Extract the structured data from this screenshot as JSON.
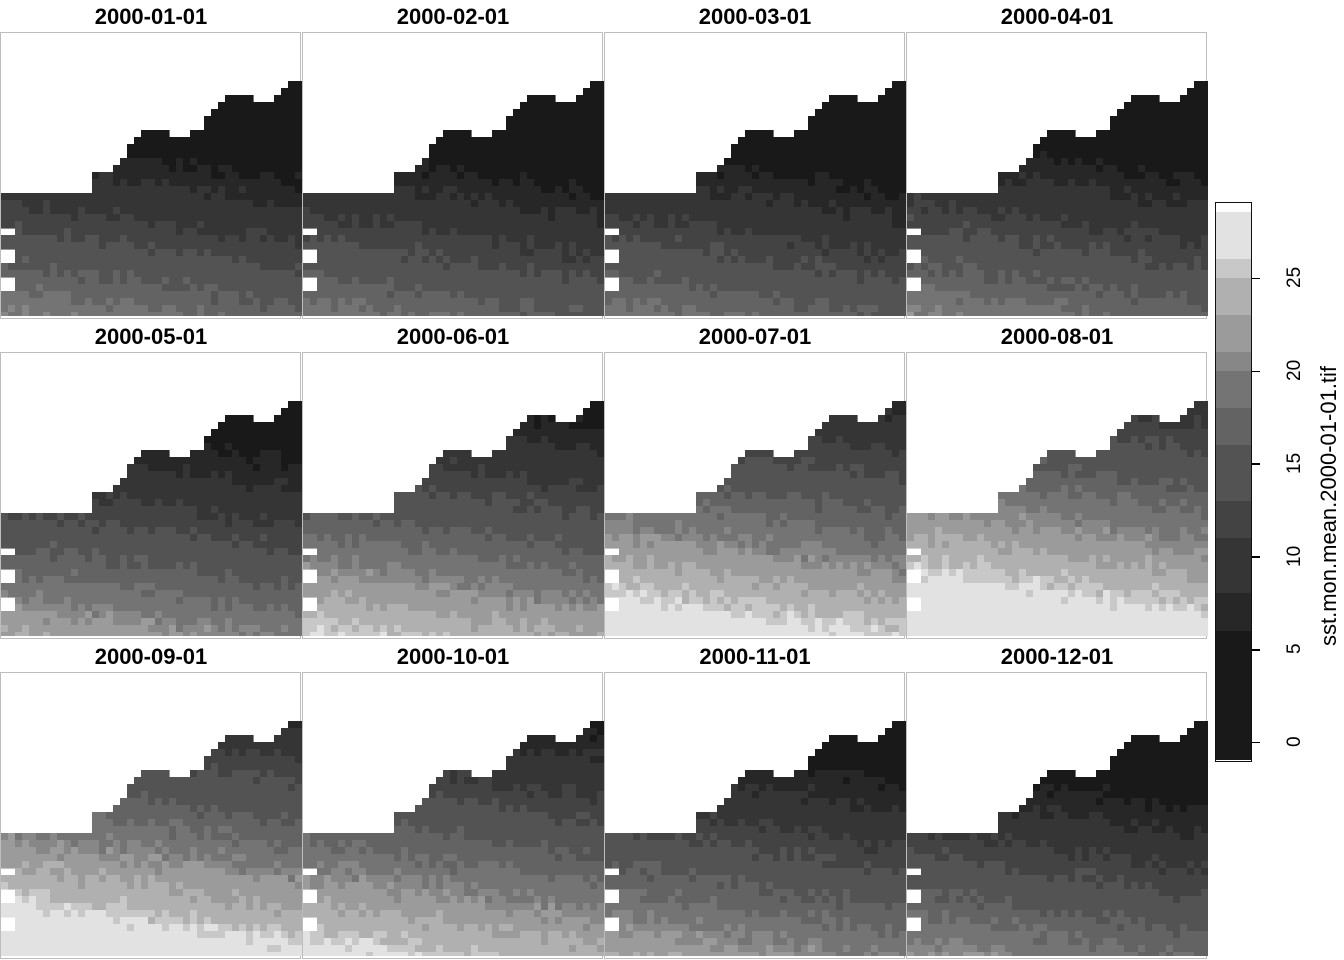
{
  "chart_data": {
    "type": "heatmap",
    "title": "",
    "legend_title": "sst.mon.mean.2000-01-01.tif",
    "value_unit": "",
    "ylim": [
      -1,
      29
    ],
    "legend_ticks": [
      0,
      5,
      10,
      15,
      20,
      25
    ],
    "legend_breaks": [
      -1,
      6,
      8,
      11,
      13,
      16,
      18,
      20,
      21,
      23,
      25,
      26,
      28.5
    ],
    "legend_colors": [
      "#191919",
      "#272727",
      "#353535",
      "#434343",
      "#535353",
      "#636363",
      "#747474",
      "#878787",
      "#9b9b9b",
      "#b0b0b0",
      "#c8c8c8",
      "#e2e2e2"
    ],
    "legend_position": "right",
    "panels": [
      {
        "title": "2000-01-01",
        "offset": 0
      },
      {
        "title": "2000-02-01",
        "offset": -1
      },
      {
        "title": "2000-03-01",
        "offset": -1
      },
      {
        "title": "2000-04-01",
        "offset": 0
      },
      {
        "title": "2000-05-01",
        "offset": 3
      },
      {
        "title": "2000-06-01",
        "offset": 6
      },
      {
        "title": "2000-07-01",
        "offset": 9
      },
      {
        "title": "2000-08-01",
        "offset": 11
      },
      {
        "title": "2000-09-01",
        "offset": 10
      },
      {
        "title": "2000-10-01",
        "offset": 7
      },
      {
        "title": "2000-11-01",
        "offset": 3
      },
      {
        "title": "2000-12-01",
        "offset": 1
      }
    ]
  }
}
